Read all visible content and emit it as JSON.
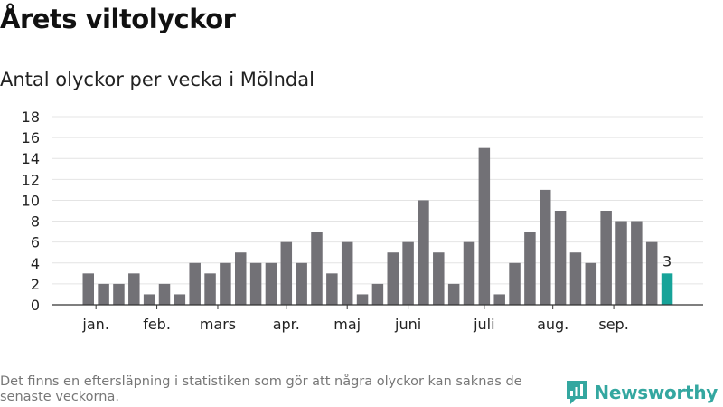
{
  "title": "Årets viltolyckor",
  "subtitle": "Antal olyckor per vecka i Mölndal",
  "footnote": "Det finns en eftersläpning i statistiken som gör att några olyckor kan saknas de senaste veckorna.",
  "brand": {
    "name": "Newsworthy",
    "icon": "newsworthy-logo-icon",
    "color": "#34a7a0"
  },
  "colors": {
    "bar": "#727176",
    "highlight": "#17a399",
    "grid": "#e4e4e4",
    "axis": "#333333"
  },
  "chart_data": {
    "type": "bar",
    "title": "Antal olyckor per vecka i Mölndal",
    "xlabel": "",
    "ylabel": "",
    "ylim": [
      0,
      18
    ],
    "yticks": [
      0,
      2,
      4,
      6,
      8,
      10,
      12,
      14,
      16,
      18
    ],
    "grid": true,
    "values": [
      3,
      2,
      2,
      3,
      1,
      2,
      1,
      4,
      3,
      4,
      5,
      4,
      4,
      6,
      4,
      7,
      3,
      6,
      1,
      2,
      5,
      6,
      10,
      5,
      2,
      6,
      15,
      1,
      4,
      7,
      11,
      9,
      5,
      4,
      9,
      8,
      8,
      6,
      3
    ],
    "highlight_index": 38,
    "highlight_label": "3",
    "month_labels": [
      {
        "label": "jan.",
        "bar_index": 0.5
      },
      {
        "label": "feb.",
        "bar_index": 4.5
      },
      {
        "label": "mars",
        "bar_index": 8.5
      },
      {
        "label": "apr.",
        "bar_index": 13
      },
      {
        "label": "maj",
        "bar_index": 17
      },
      {
        "label": "juni",
        "bar_index": 21
      },
      {
        "label": "juli",
        "bar_index": 26
      },
      {
        "label": "aug.",
        "bar_index": 30.5
      },
      {
        "label": "sep.",
        "bar_index": 34.5
      }
    ]
  }
}
